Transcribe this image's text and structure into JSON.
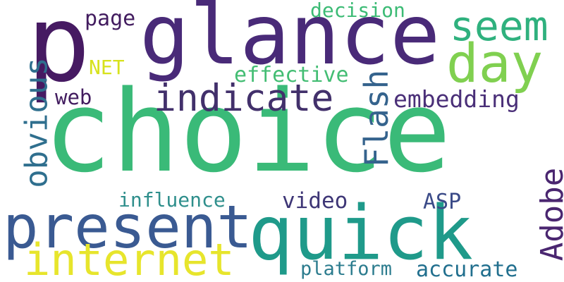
{
  "word_cloud": {
    "words": [
      {
        "text": "choice",
        "color": "#3aba78",
        "orientation": "horizontal"
      },
      {
        "text": "p",
        "color": "#461a62",
        "orientation": "horizontal"
      },
      {
        "text": "glance",
        "color": "#492a78",
        "orientation": "horizontal"
      },
      {
        "text": "quick",
        "color": "#1f9a8a",
        "orientation": "horizontal"
      },
      {
        "text": "present",
        "color": "#3a5a92",
        "orientation": "horizontal"
      },
      {
        "text": "internet",
        "color": "#e7e52c",
        "orientation": "horizontal"
      },
      {
        "text": "day",
        "color": "#80d050",
        "orientation": "horizontal"
      },
      {
        "text": "seem",
        "color": "#2fb17e",
        "orientation": "horizontal"
      },
      {
        "text": "indicate",
        "color": "#42306b",
        "orientation": "horizontal"
      },
      {
        "text": "Flash",
        "color": "#35638d",
        "orientation": "vertical"
      },
      {
        "text": "obvious",
        "color": "#2f6f8e",
        "orientation": "vertical"
      },
      {
        "text": "Adobe",
        "color": "#4a2670",
        "orientation": "vertical"
      },
      {
        "text": "effective",
        "color": "#43bd73",
        "orientation": "horizontal"
      },
      {
        "text": "embedding",
        "color": "#4a2f78",
        "orientation": "horizontal"
      },
      {
        "text": "web",
        "color": "#421c5f",
        "orientation": "horizontal"
      },
      {
        "text": "page",
        "color": "#421c5f",
        "orientation": "horizontal"
      },
      {
        "text": "NET",
        "color": "#d7e21c",
        "orientation": "horizontal"
      },
      {
        "text": "decision",
        "color": "#3cbb75",
        "orientation": "horizontal"
      },
      {
        "text": "influence",
        "color": "#2f8f8c",
        "orientation": "horizontal"
      },
      {
        "text": "video",
        "color": "#3e3676",
        "orientation": "horizontal"
      },
      {
        "text": "ASP",
        "color": "#3b4b88",
        "orientation": "horizontal"
      },
      {
        "text": "platform",
        "color": "#2c7c8e",
        "orientation": "horizontal"
      },
      {
        "text": "accurate",
        "color": "#216f8e",
        "orientation": "horizontal"
      }
    ]
  }
}
